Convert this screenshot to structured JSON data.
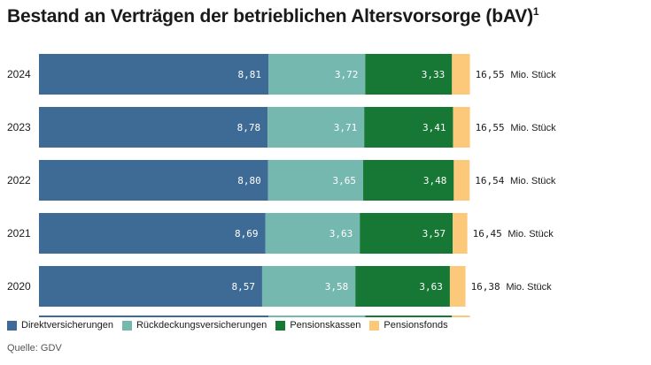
{
  "title": "Bestand an Verträgen der betrieblichen Altersvorsorge (bAV)",
  "title_footnote": "1",
  "source": "Quelle: GDV",
  "unit": "Mio. Stück",
  "colors": {
    "Direktversicherungen": "#3d6b96",
    "Rückdeckungsversicherungen": "#74b8b0",
    "Pensionskassen": "#167834",
    "Pensionsfonds": "#fcc97a"
  },
  "chart_data": {
    "type": "bar",
    "orientation": "horizontal",
    "stacked": true,
    "title": "Bestand an Verträgen der betrieblichen Altersvorsorge (bAV)",
    "categories": [
      "2024",
      "2023",
      "2022",
      "2021",
      "2020"
    ],
    "series": [
      {
        "name": "Direktversicherungen",
        "values": [
          8.81,
          8.78,
          8.8,
          8.69,
          8.57
        ],
        "labels": [
          "8,81",
          "8,78",
          "8,80",
          "8,69",
          "8,57"
        ]
      },
      {
        "name": "Rückdeckungsversicherungen",
        "values": [
          3.72,
          3.71,
          3.65,
          3.63,
          3.58
        ],
        "labels": [
          "3,72",
          "3,71",
          "3,65",
          "3,63",
          "3,58"
        ]
      },
      {
        "name": "Pensionskassen",
        "values": [
          3.33,
          3.41,
          3.48,
          3.57,
          3.63
        ],
        "labels": [
          "3,33",
          "3,41",
          "3,48",
          "3,57",
          "3,63"
        ]
      },
      {
        "name": "Pensionsfonds",
        "values": [
          0.69,
          0.65,
          0.61,
          0.56,
          0.6
        ]
      }
    ],
    "totals": [
      16.55,
      16.55,
      16.54,
      16.45,
      16.38
    ],
    "total_labels": [
      "16,55",
      "16,55",
      "16,54",
      "16,45",
      "16,38"
    ],
    "legend": "bottom",
    "grid": false
  }
}
